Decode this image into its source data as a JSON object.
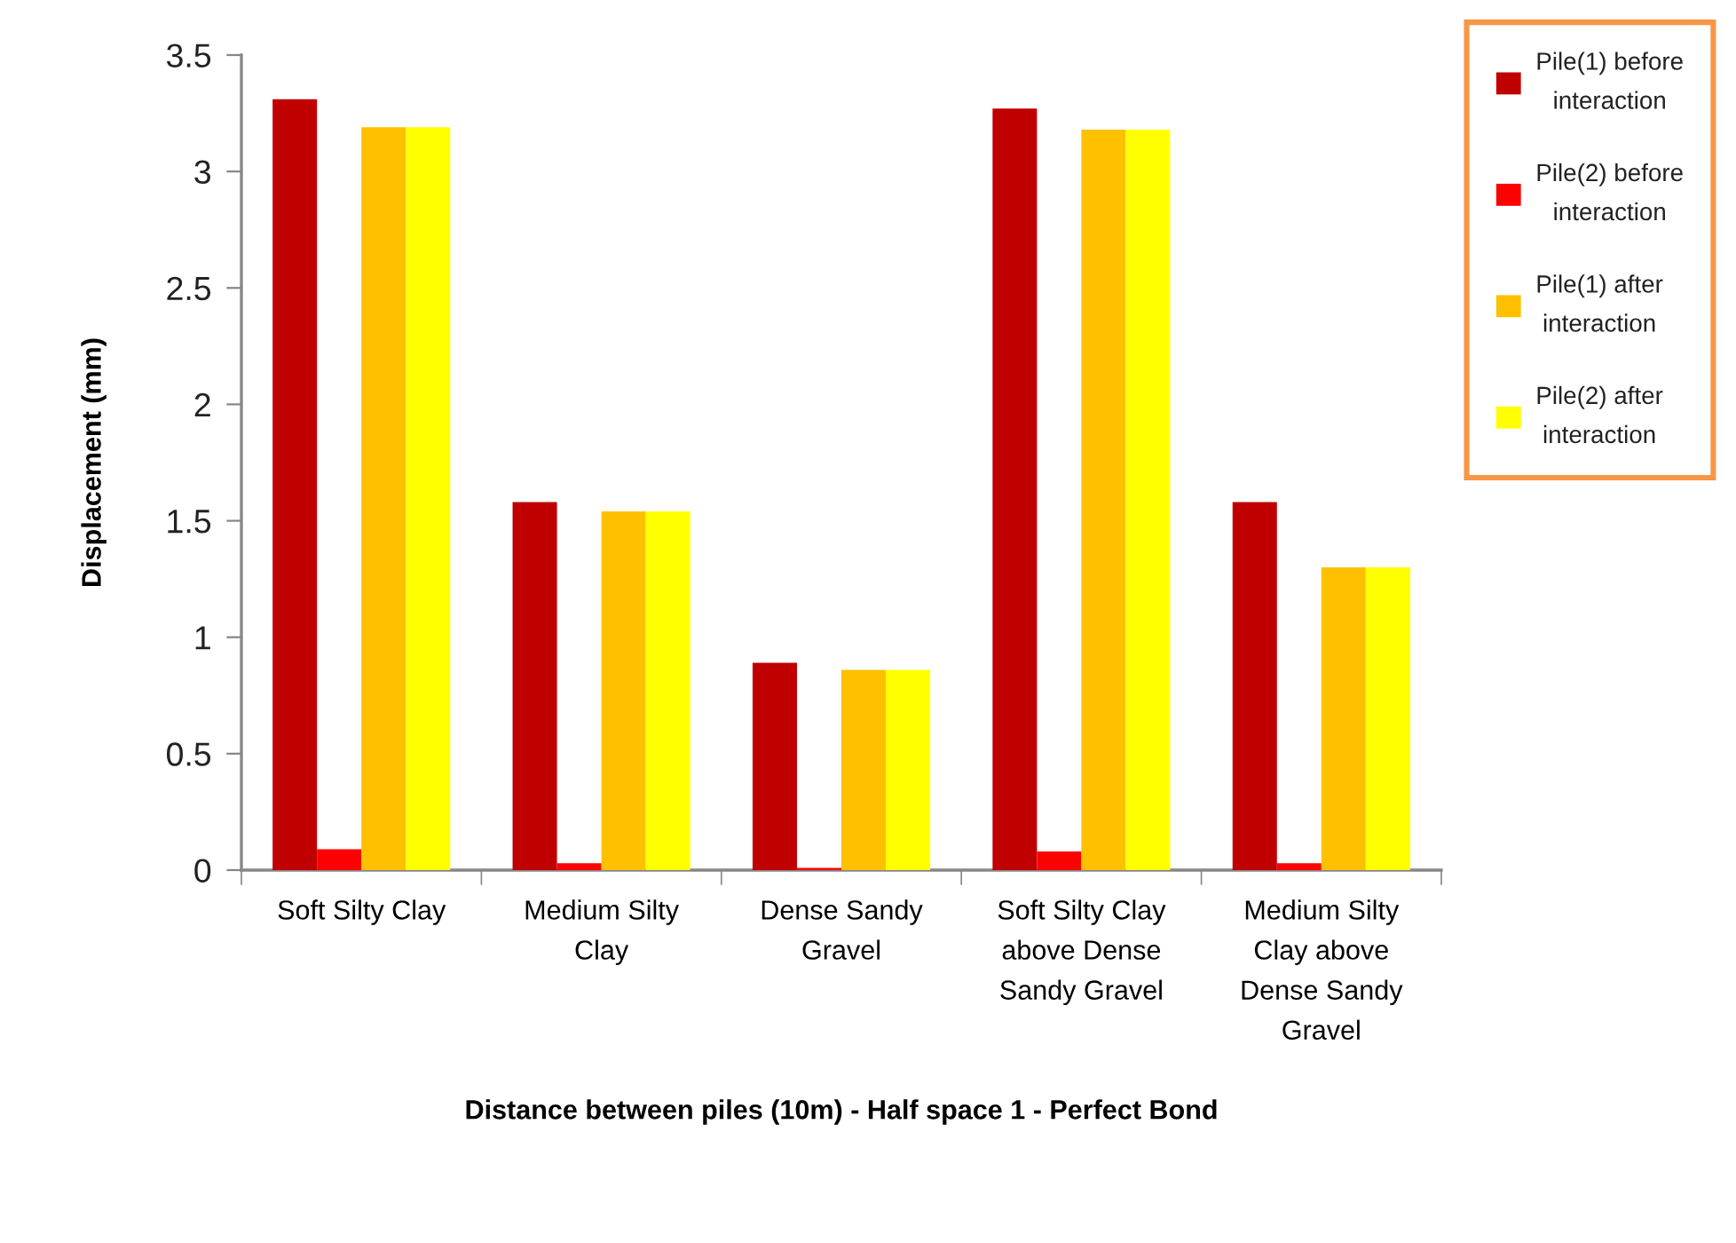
{
  "chart_data": {
    "type": "bar",
    "xlabel": "Distance between piles (10m) - Half space 1 - Perfect Bond",
    "ylabel": "Displacement (mm)",
    "categories": [
      "Soft Silty Clay",
      "Medium Silty\nClay",
      "Dense Sandy\nGravel",
      "Soft Silty Clay\nabove Dense\nSandy Gravel",
      "Medium Silty\nClay above\nDense Sandy\nGravel"
    ],
    "series": [
      {
        "name": "Pile(1) before\ninteraction",
        "color": "#c00000",
        "values": [
          3.31,
          1.58,
          0.89,
          3.27,
          1.58
        ]
      },
      {
        "name": "Pile(2) before\ninteraction",
        "color": "#ff0000",
        "values": [
          0.09,
          0.03,
          0.01,
          0.08,
          0.03
        ]
      },
      {
        "name": "Pile(1) after\ninteraction",
        "color": "#ffc000",
        "values": [
          3.19,
          1.54,
          0.86,
          3.18,
          1.3
        ]
      },
      {
        "name": "Pile(2) after\ninteraction",
        "color": "#ffff00",
        "values": [
          3.19,
          1.54,
          0.86,
          3.18,
          1.3
        ]
      }
    ],
    "ylim": [
      0,
      3.5
    ],
    "yticks": [
      0,
      0.5,
      1,
      1.5,
      2,
      2.5,
      3,
      3.5
    ],
    "legend": "top right"
  }
}
